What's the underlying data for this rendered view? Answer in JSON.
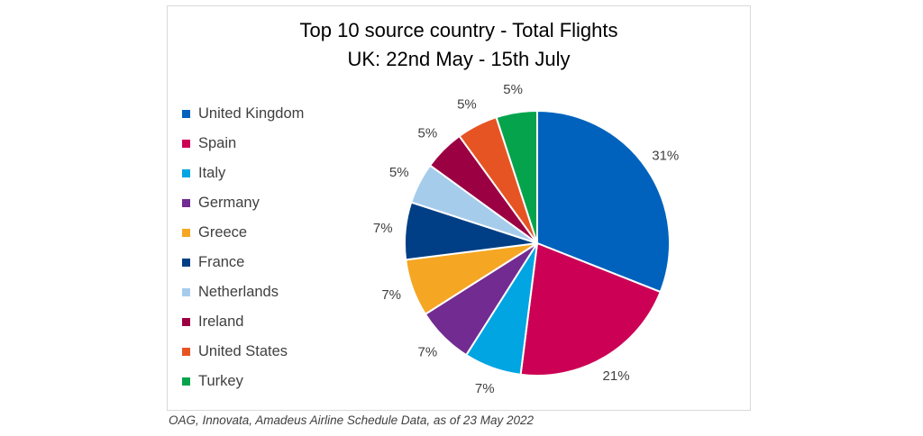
{
  "chart_data": {
    "type": "pie",
    "title": "Top 10 source country - Total Flights",
    "subtitle": "UK: 22nd May - 15th July",
    "legend_position": "left",
    "slices": [
      {
        "label": "United Kingdom",
        "value": 31,
        "display": "31%",
        "color": "#0062bd"
      },
      {
        "label": "Spain",
        "value": 21,
        "display": "21%",
        "color": "#cc0055"
      },
      {
        "label": "Italy",
        "value": 7,
        "display": "7%",
        "color": "#00a5e2"
      },
      {
        "label": "Germany",
        "value": 7,
        "display": "7%",
        "color": "#722b91"
      },
      {
        "label": "Greece",
        "value": 7,
        "display": "7%",
        "color": "#f5a623"
      },
      {
        "label": "France",
        "value": 7,
        "display": "7%",
        "color": "#003f85"
      },
      {
        "label": "Netherlands",
        "value": 5,
        "display": "5%",
        "color": "#a6ccec"
      },
      {
        "label": "Ireland",
        "value": 5,
        "display": "5%",
        "color": "#9b0042"
      },
      {
        "label": "United States",
        "value": 5,
        "display": "5%",
        "color": "#e75424"
      },
      {
        "label": "Turkey",
        "value": 5,
        "display": "5%",
        "color": "#05a44c"
      }
    ]
  },
  "source_note": "OAG, Innovata, Amadeus Airline Schedule Data, as of 23 May 2022"
}
